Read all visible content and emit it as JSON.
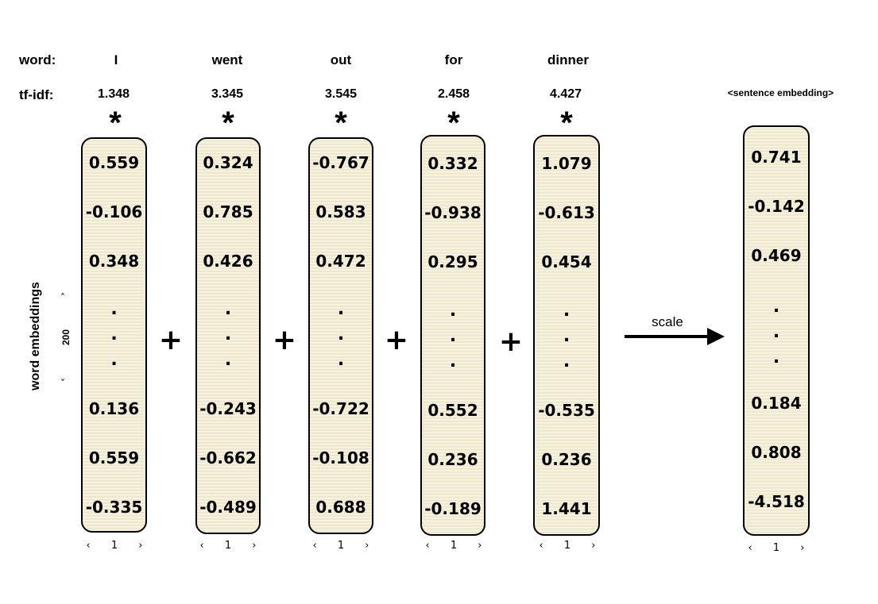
{
  "labels": {
    "word_row": "word:",
    "tfidf_row": "tf-idf:",
    "sentence_embedding": "<sentence embedding>",
    "word_embeddings": "word embeddings",
    "dimension": "200",
    "scale": "scale",
    "plus": "+",
    "star": "*",
    "vector_width": "1",
    "left_caret": "‹",
    "right_caret": "›",
    "up_caret": "˄",
    "down_caret": "˅",
    "dot": "."
  },
  "words": [
    {
      "word": "I",
      "tfidf": "1.348",
      "top": [
        "0.559",
        "-0.106",
        "0.348"
      ],
      "bottom": [
        "0.136",
        "0.559",
        "-0.335"
      ]
    },
    {
      "word": "went",
      "tfidf": "3.345",
      "top": [
        "0.324",
        "0.785",
        "0.426"
      ],
      "bottom": [
        "-0.243",
        "-0.662",
        "-0.489"
      ]
    },
    {
      "word": "out",
      "tfidf": "3.545",
      "top": [
        "-0.767",
        "0.583",
        "0.472"
      ],
      "bottom": [
        "-0.722",
        "-0.108",
        "0.688"
      ]
    },
    {
      "word": "for",
      "tfidf": "2.458",
      "top": [
        "0.332",
        "-0.938",
        "0.295"
      ],
      "bottom": [
        "0.552",
        "0.236",
        "-0.189"
      ]
    },
    {
      "word": "dinner",
      "tfidf": "4.427",
      "top": [
        "1.079",
        "-0.613",
        "0.454"
      ],
      "bottom": [
        "-0.535",
        "0.236",
        "1.441"
      ]
    }
  ],
  "sentence": {
    "top": [
      "0.741",
      "-0.142",
      "0.469"
    ],
    "bottom": [
      "0.184",
      "0.808",
      "-4.518"
    ]
  },
  "colors": {
    "vector_fill": "#f4eed7",
    "border": "#000000"
  }
}
